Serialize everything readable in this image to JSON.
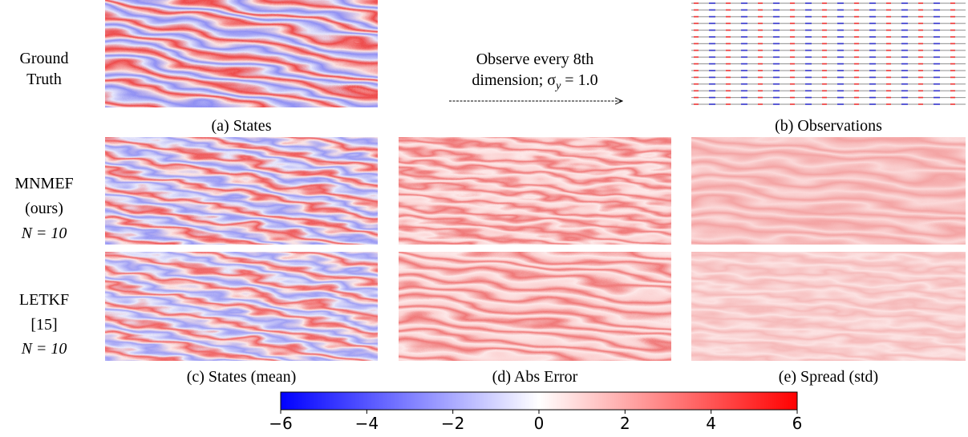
{
  "row_labels": [
    [
      "Ground",
      "Truth"
    ],
    [
      "MNMEF",
      "(ours)",
      "N = 10"
    ],
    [
      "LETKF",
      "[15]",
      "N = 10"
    ]
  ],
  "arrow_text": {
    "line1": "Observe every 8th",
    "line2_start": "dimension; σ",
    "line2_sub": "y",
    "line2_end": " = 1.0"
  },
  "captions": [
    "(a) States",
    "(b) Observations",
    "(c) States (mean)",
    "(d) Abs Error",
    "(e) Spread (std)"
  ],
  "chart_data": {
    "type": "colorbar",
    "xlim": [
      -6,
      6
    ],
    "xticks": [
      {
        "value": -6,
        "label": "−6"
      },
      {
        "value": -4,
        "label": "−4"
      },
      {
        "value": -2,
        "label": "−2"
      },
      0,
      2,
      4,
      6
    ],
    "colors": [
      "#0000ff",
      "#ffffff",
      "#ff0000"
    ]
  }
}
